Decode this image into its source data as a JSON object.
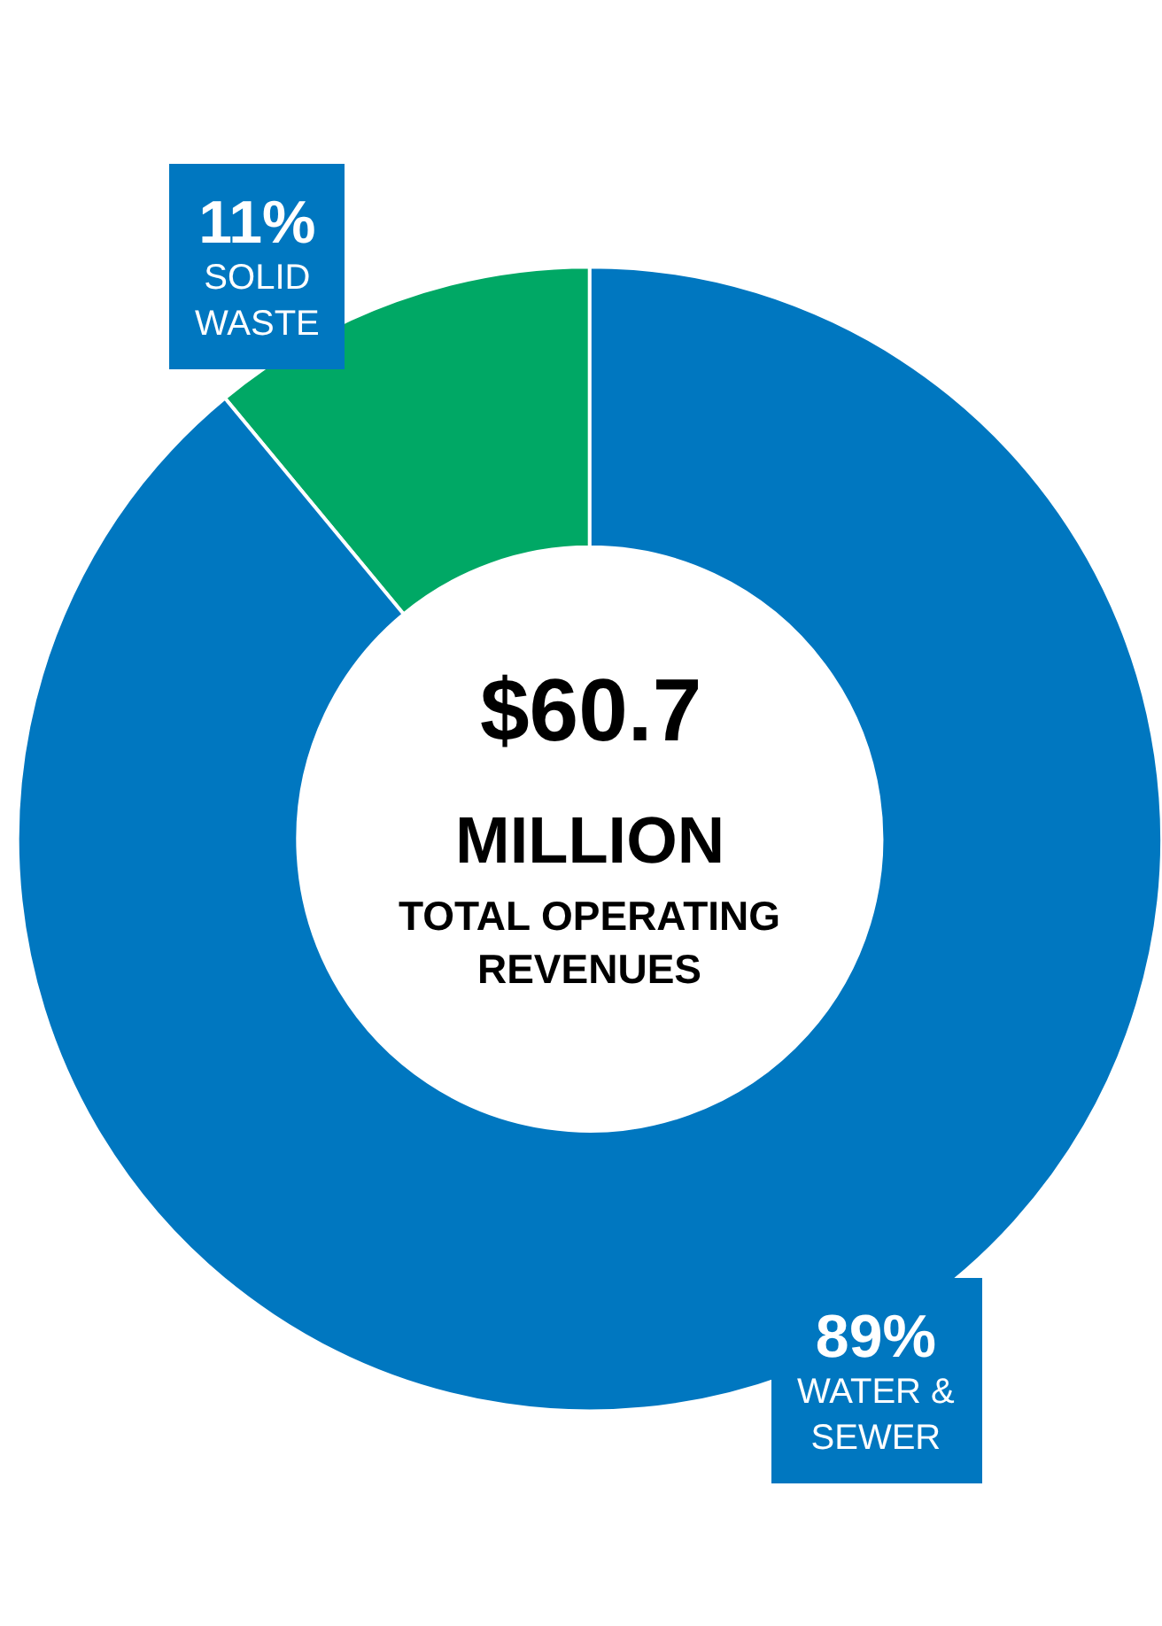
{
  "chart_data": {
    "type": "donut",
    "categories": [
      "SOLID WASTE",
      "WATER & SEWER"
    ],
    "values": [
      11,
      89
    ],
    "value_labels": [
      "11%",
      "89%"
    ],
    "colors": [
      "#00a865",
      "#0077c0"
    ],
    "annotations": [
      "$60.7",
      "MILLION",
      "TOTAL OPERATING REVENUES"
    ],
    "legend": false
  }
}
